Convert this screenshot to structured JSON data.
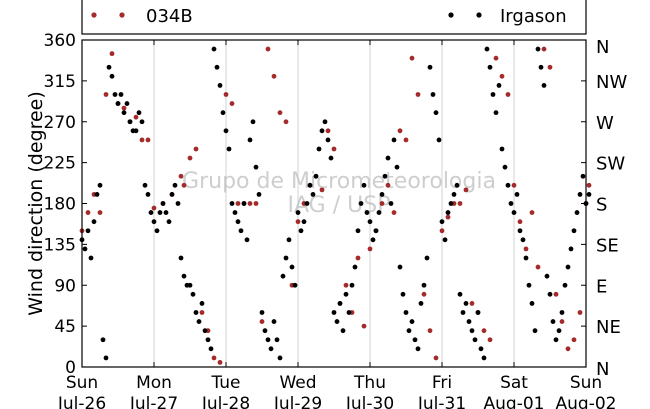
{
  "chart_data": {
    "type": "scatter",
    "ylabel": "Wind direction (degree)",
    "ylim": [
      0,
      360
    ],
    "xlim": [
      "Jul-26",
      "Aug-02"
    ],
    "y_ticks": [
      0,
      45,
      90,
      135,
      180,
      225,
      270,
      315,
      360
    ],
    "x_ticks": [
      {
        "day": "Sun",
        "date": "Jul-26"
      },
      {
        "day": "Mon",
        "date": "Jul-27"
      },
      {
        "day": "Tue",
        "date": "Jul-28"
      },
      {
        "day": "Wed",
        "date": "Jul-29"
      },
      {
        "day": "Thu",
        "date": "Jul-30"
      },
      {
        "day": "Fri",
        "date": "Jul-31"
      },
      {
        "day": "Sat",
        "date": "Aug-01"
      },
      {
        "day": "Sun",
        "date": "Aug-02"
      }
    ],
    "right_ticks": [
      "N",
      "NE",
      "E",
      "SE",
      "S",
      "SW",
      "W",
      "NW",
      "N"
    ],
    "grid": "vertical",
    "legend_position": "top",
    "watermark": [
      "Grupo de Micrometeorologia",
      "IAG / USP"
    ],
    "series": [
      {
        "name": "034B",
        "color": "#a52a2a",
        "points": [
          [
            "Jul-26 00:00",
            150
          ],
          [
            "Jul-26 02:00",
            170
          ],
          [
            "Jul-26 04:00",
            190
          ],
          [
            "Jul-26 06:00",
            170
          ],
          [
            "Jul-26 08:00",
            300
          ],
          [
            "Jul-26 10:00",
            345
          ],
          [
            "Jul-26 12:00",
            290
          ],
          [
            "Jul-26 14:00",
            285
          ],
          [
            "Jul-26 16:00",
            270
          ],
          [
            "Jul-26 18:00",
            275
          ],
          [
            "Jul-26 20:00",
            250
          ],
          [
            "Jul-26 22:00",
            250
          ],
          [
            "Jul-27 00:00",
            175
          ],
          [
            "Jul-27 03:00",
            180
          ],
          [
            "Jul-27 06:00",
            190
          ],
          [
            "Jul-27 09:00",
            210
          ],
          [
            "Jul-27 10:00",
            200
          ],
          [
            "Jul-27 12:00",
            230
          ],
          [
            "Jul-27 14:00",
            240
          ],
          [
            "Jul-27 16:00",
            60
          ],
          [
            "Jul-27 18:00",
            40
          ],
          [
            "Jul-27 20:00",
            10
          ],
          [
            "Jul-27 22:00",
            5
          ],
          [
            "Jul-28 00:00",
            300
          ],
          [
            "Jul-28 02:00",
            290
          ],
          [
            "Jul-28 04:00",
            180
          ],
          [
            "Jul-28 06:00",
            180
          ],
          [
            "Jul-28 08:00",
            180
          ],
          [
            "Jul-28 10:00",
            180
          ],
          [
            "Jul-28 12:00",
            50
          ],
          [
            "Jul-28 14:00",
            350
          ],
          [
            "Jul-28 16:00",
            320
          ],
          [
            "Jul-28 18:00",
            280
          ],
          [
            "Jul-28 20:00",
            270
          ],
          [
            "Jul-28 22:00",
            90
          ],
          [
            "Jul-29 00:00",
            160
          ],
          [
            "Jul-29 02:00",
            180
          ],
          [
            "Jul-29 04:00",
            200
          ],
          [
            "Jul-29 06:00",
            210
          ],
          [
            "Jul-29 08:00",
            195
          ],
          [
            "Jul-29 10:00",
            260
          ],
          [
            "Jul-29 12:00",
            240
          ],
          [
            "Jul-29 14:00",
            70
          ],
          [
            "Jul-29 16:00",
            90
          ],
          [
            "Jul-29 18:00",
            60
          ],
          [
            "Jul-29 20:00",
            120
          ],
          [
            "Jul-29 22:00",
            45
          ],
          [
            "Jul-30 00:00",
            130
          ],
          [
            "Jul-30 02:00",
            150
          ],
          [
            "Jul-30 04:00",
            180
          ],
          [
            "Jul-30 06:00",
            200
          ],
          [
            "Jul-30 08:00",
            170
          ],
          [
            "Jul-30 10:00",
            260
          ],
          [
            "Jul-30 12:00",
            250
          ],
          [
            "Jul-30 14:00",
            340
          ],
          [
            "Jul-30 16:00",
            300
          ],
          [
            "Jul-30 18:00",
            80
          ],
          [
            "Jul-30 20:00",
            40
          ],
          [
            "Jul-30 22:00",
            10
          ],
          [
            "Jul-31 00:00",
            150
          ],
          [
            "Jul-31 02:00",
            165
          ],
          [
            "Jul-31 04:00",
            180
          ],
          [
            "Jul-31 06:00",
            180
          ],
          [
            "Jul-31 08:00",
            195
          ],
          [
            "Jul-31 10:00",
            70
          ],
          [
            "Jul-31 12:00",
            60
          ],
          [
            "Jul-31 14:00",
            40
          ],
          [
            "Jul-31 16:00",
            30
          ],
          [
            "Jul-31 18:00",
            340
          ],
          [
            "Jul-31 20:00",
            320
          ],
          [
            "Jul-31 22:00",
            300
          ],
          [
            "Aug-01 00:00",
            200
          ],
          [
            "Aug-01 02:00",
            160
          ],
          [
            "Aug-01 04:00",
            130
          ],
          [
            "Aug-01 06:00",
            170
          ],
          [
            "Aug-01 08:00",
            110
          ],
          [
            "Aug-01 10:00",
            350
          ],
          [
            "Aug-01 12:00",
            330
          ],
          [
            "Aug-01 14:00",
            80
          ],
          [
            "Aug-01 16:00",
            50
          ],
          [
            "Aug-01 18:00",
            20
          ],
          [
            "Aug-01 20:00",
            30
          ],
          [
            "Aug-01 22:00",
            60
          ],
          [
            "Aug-02 00:00",
            180
          ],
          [
            "Aug-02 01:00",
            200
          ]
        ]
      },
      {
        "name": "Irgason",
        "color": "#000000",
        "points": [
          [
            "Jul-26 00:00",
            140
          ],
          [
            "Jul-26 01:00",
            130
          ],
          [
            "Jul-26 02:00",
            150
          ],
          [
            "Jul-26 03:00",
            120
          ],
          [
            "Jul-26 04:00",
            160
          ],
          [
            "Jul-26 05:00",
            190
          ],
          [
            "Jul-26 06:00",
            200
          ],
          [
            "Jul-26 07:00",
            30
          ],
          [
            "Jul-26 08:00",
            10
          ],
          [
            "Jul-26 09:00",
            330
          ],
          [
            "Jul-26 10:00",
            320
          ],
          [
            "Jul-26 11:00",
            300
          ],
          [
            "Jul-26 12:00",
            290
          ],
          [
            "Jul-26 13:00",
            300
          ],
          [
            "Jul-26 14:00",
            280
          ],
          [
            "Jul-26 15:00",
            290
          ],
          [
            "Jul-26 16:00",
            270
          ],
          [
            "Jul-26 17:00",
            260
          ],
          [
            "Jul-26 18:00",
            260
          ],
          [
            "Jul-26 19:00",
            280
          ],
          [
            "Jul-26 20:00",
            270
          ],
          [
            "Jul-26 21:00",
            200
          ],
          [
            "Jul-26 22:00",
            190
          ],
          [
            "Jul-26 23:00",
            170
          ],
          [
            "Jul-27 00:00",
            160
          ],
          [
            "Jul-27 01:00",
            150
          ],
          [
            "Jul-27 02:00",
            170
          ],
          [
            "Jul-27 03:00",
            180
          ],
          [
            "Jul-27 04:00",
            170
          ],
          [
            "Jul-27 05:00",
            160
          ],
          [
            "Jul-27 06:00",
            190
          ],
          [
            "Jul-27 07:00",
            200
          ],
          [
            "Jul-27 08:00",
            180
          ],
          [
            "Jul-27 09:00",
            120
          ],
          [
            "Jul-27 10:00",
            100
          ],
          [
            "Jul-27 11:00",
            90
          ],
          [
            "Jul-27 12:00",
            90
          ],
          [
            "Jul-27 13:00",
            80
          ],
          [
            "Jul-27 14:00",
            60
          ],
          [
            "Jul-27 15:00",
            50
          ],
          [
            "Jul-27 16:00",
            70
          ],
          [
            "Jul-27 17:00",
            40
          ],
          [
            "Jul-27 18:00",
            30
          ],
          [
            "Jul-27 19:00",
            20
          ],
          [
            "Jul-27 20:00",
            350
          ],
          [
            "Jul-27 21:00",
            330
          ],
          [
            "Jul-27 22:00",
            310
          ],
          [
            "Jul-27 23:00",
            280
          ],
          [
            "Jul-28 00:00",
            260
          ],
          [
            "Jul-28 01:00",
            240
          ],
          [
            "Jul-28 02:00",
            180
          ],
          [
            "Jul-28 03:00",
            170
          ],
          [
            "Jul-28 04:00",
            160
          ],
          [
            "Jul-28 05:00",
            150
          ],
          [
            "Jul-28 06:00",
            180
          ],
          [
            "Jul-28 07:00",
            140
          ],
          [
            "Jul-28 08:00",
            250
          ],
          [
            "Jul-28 09:00",
            270
          ],
          [
            "Jul-28 10:00",
            220
          ],
          [
            "Jul-28 11:00",
            190
          ],
          [
            "Jul-28 12:00",
            60
          ],
          [
            "Jul-28 13:00",
            40
          ],
          [
            "Jul-28 14:00",
            30
          ],
          [
            "Jul-28 15:00",
            20
          ],
          [
            "Jul-28 16:00",
            50
          ],
          [
            "Jul-28 17:00",
            30
          ],
          [
            "Jul-28 18:00",
            10
          ],
          [
            "Jul-28 19:00",
            100
          ],
          [
            "Jul-28 20:00",
            120
          ],
          [
            "Jul-28 21:00",
            140
          ],
          [
            "Jul-28 22:00",
            110
          ],
          [
            "Jul-28 23:00",
            90
          ],
          [
            "Jul-29 00:00",
            170
          ],
          [
            "Jul-29 01:00",
            150
          ],
          [
            "Jul-29 02:00",
            160
          ],
          [
            "Jul-29 03:00",
            180
          ],
          [
            "Jul-29 04:00",
            200
          ],
          [
            "Jul-29 05:00",
            190
          ],
          [
            "Jul-29 06:00",
            210
          ],
          [
            "Jul-29 07:00",
            240
          ],
          [
            "Jul-29 08:00",
            260
          ],
          [
            "Jul-29 09:00",
            270
          ],
          [
            "Jul-29 10:00",
            250
          ],
          [
            "Jul-29 11:00",
            230
          ],
          [
            "Jul-29 12:00",
            60
          ],
          [
            "Jul-29 13:00",
            50
          ],
          [
            "Jul-29 14:00",
            70
          ],
          [
            "Jul-29 15:00",
            40
          ],
          [
            "Jul-29 16:00",
            80
          ],
          [
            "Jul-29 17:00",
            60
          ],
          [
            "Jul-29 18:00",
            90
          ],
          [
            "Jul-29 19:00",
            110
          ],
          [
            "Jul-29 20:00",
            150
          ],
          [
            "Jul-29 21:00",
            180
          ],
          [
            "Jul-29 22:00",
            200
          ],
          [
            "Jul-29 23:00",
            170
          ],
          [
            "Jul-30 00:00",
            160
          ],
          [
            "Jul-30 01:00",
            140
          ],
          [
            "Jul-30 02:00",
            150
          ],
          [
            "Jul-30 03:00",
            170
          ],
          [
            "Jul-30 04:00",
            190
          ],
          [
            "Jul-30 05:00",
            210
          ],
          [
            "Jul-30 06:00",
            230
          ],
          [
            "Jul-30 07:00",
            180
          ],
          [
            "Jul-30 08:00",
            250
          ],
          [
            "Jul-30 09:00",
            220
          ],
          [
            "Jul-30 10:00",
            110
          ],
          [
            "Jul-30 11:00",
            80
          ],
          [
            "Jul-30 12:00",
            60
          ],
          [
            "Jul-30 13:00",
            40
          ],
          [
            "Jul-30 14:00",
            50
          ],
          [
            "Jul-30 15:00",
            30
          ],
          [
            "Jul-30 16:00",
            20
          ],
          [
            "Jul-30 17:00",
            70
          ],
          [
            "Jul-30 18:00",
            90
          ],
          [
            "Jul-30 19:00",
            120
          ],
          [
            "Jul-30 20:00",
            330
          ],
          [
            "Jul-30 21:00",
            300
          ],
          [
            "Jul-30 22:00",
            280
          ],
          [
            "Jul-30 23:00",
            250
          ],
          [
            "Jul-31 00:00",
            160
          ],
          [
            "Jul-31 01:00",
            140
          ],
          [
            "Jul-31 02:00",
            170
          ],
          [
            "Jul-31 03:00",
            180
          ],
          [
            "Jul-31 04:00",
            190
          ],
          [
            "Jul-31 05:00",
            200
          ],
          [
            "Jul-31 06:00",
            80
          ],
          [
            "Jul-31 07:00",
            60
          ],
          [
            "Jul-31 08:00",
            70
          ],
          [
            "Jul-31 09:00",
            50
          ],
          [
            "Jul-31 10:00",
            40
          ],
          [
            "Jul-31 11:00",
            30
          ],
          [
            "Jul-31 12:00",
            60
          ],
          [
            "Jul-31 13:00",
            20
          ],
          [
            "Jul-31 14:00",
            10
          ],
          [
            "Jul-31 15:00",
            350
          ],
          [
            "Jul-31 16:00",
            330
          ],
          [
            "Jul-31 17:00",
            300
          ],
          [
            "Jul-31 18:00",
            280
          ],
          [
            "Jul-31 19:00",
            310
          ],
          [
            "Jul-31 20:00",
            240
          ],
          [
            "Jul-31 21:00",
            220
          ],
          [
            "Jul-31 22:00",
            200
          ],
          [
            "Jul-31 23:00",
            180
          ],
          [
            "Aug-01 00:00",
            170
          ],
          [
            "Aug-01 01:00",
            190
          ],
          [
            "Aug-01 02:00",
            150
          ],
          [
            "Aug-01 03:00",
            140
          ],
          [
            "Aug-01 04:00",
            120
          ],
          [
            "Aug-01 05:00",
            90
          ],
          [
            "Aug-01 06:00",
            70
          ],
          [
            "Aug-01 07:00",
            40
          ],
          [
            "Aug-01 08:00",
            350
          ],
          [
            "Aug-01 09:00",
            330
          ],
          [
            "Aug-01 10:00",
            310
          ],
          [
            "Aug-01 11:00",
            100
          ],
          [
            "Aug-01 12:00",
            80
          ],
          [
            "Aug-01 13:00",
            50
          ],
          [
            "Aug-01 14:00",
            30
          ],
          [
            "Aug-01 15:00",
            40
          ],
          [
            "Aug-01 16:00",
            60
          ],
          [
            "Aug-01 17:00",
            90
          ],
          [
            "Aug-01 18:00",
            110
          ],
          [
            "Aug-01 19:00",
            130
          ],
          [
            "Aug-01 20:00",
            150
          ],
          [
            "Aug-01 21:00",
            170
          ],
          [
            "Aug-01 22:00",
            190
          ],
          [
            "Aug-01 23:00",
            210
          ],
          [
            "Aug-02 00:00",
            180
          ],
          [
            "Aug-02 01:00",
            190
          ]
        ]
      }
    ]
  }
}
